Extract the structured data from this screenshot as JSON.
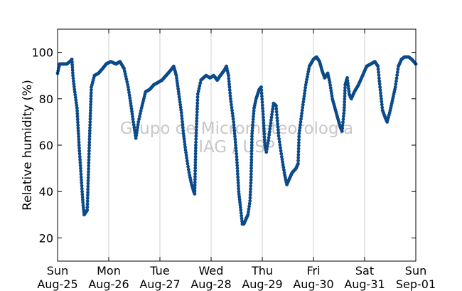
{
  "chart_data": {
    "type": "scatter",
    "title": "",
    "xlabel": "",
    "ylabel": "Relative humidity (%)",
    "ylim": [
      10,
      110
    ],
    "yticks": [
      20,
      40,
      60,
      80,
      100
    ],
    "xlim": [
      0,
      7
    ],
    "x_unit": "days from Sun Aug-25 00:00",
    "xticks": [
      {
        "x": 0,
        "day": "Sun",
        "date": "Aug-25"
      },
      {
        "x": 1,
        "day": "Mon",
        "date": "Aug-26"
      },
      {
        "x": 2,
        "day": "Tue",
        "date": "Aug-27"
      },
      {
        "x": 3,
        "day": "Wed",
        "date": "Aug-28"
      },
      {
        "x": 4,
        "day": "Thu",
        "date": "Aug-29"
      },
      {
        "x": 5,
        "day": "Fri",
        "date": "Aug-30"
      },
      {
        "x": 6,
        "day": "Sat",
        "date": "Aug-31"
      },
      {
        "x": 7,
        "day": "Sun",
        "date": "Sep-01"
      }
    ],
    "grid": "vertical",
    "marker_color": "#0b4a8a",
    "watermark": [
      "Grupo de Micrometeorologia",
      "IAG / USP"
    ],
    "series": [
      {
        "values": [
          [
            0.0,
            91
          ],
          [
            0.04,
            95
          ],
          [
            0.1,
            95
          ],
          [
            0.18,
            95
          ],
          [
            0.24,
            96
          ],
          [
            0.28,
            97
          ],
          [
            0.3,
            90
          ],
          [
            0.33,
            84
          ],
          [
            0.38,
            76
          ],
          [
            0.42,
            60
          ],
          [
            0.45,
            50
          ],
          [
            0.48,
            40
          ],
          [
            0.5,
            34
          ],
          [
            0.52,
            30
          ],
          [
            0.55,
            31
          ],
          [
            0.58,
            32
          ],
          [
            0.62,
            60
          ],
          [
            0.66,
            85
          ],
          [
            0.72,
            90
          ],
          [
            0.8,
            91
          ],
          [
            0.88,
            93
          ],
          [
            0.95,
            95
          ],
          [
            1.04,
            96
          ],
          [
            1.14,
            95
          ],
          [
            1.22,
            96
          ],
          [
            1.3,
            93
          ],
          [
            1.38,
            85
          ],
          [
            1.43,
            78
          ],
          [
            1.48,
            70
          ],
          [
            1.53,
            63
          ],
          [
            1.58,
            70
          ],
          [
            1.64,
            76
          ],
          [
            1.72,
            83
          ],
          [
            1.8,
            84
          ],
          [
            1.88,
            86
          ],
          [
            1.96,
            87
          ],
          [
            2.04,
            88
          ],
          [
            2.12,
            90
          ],
          [
            2.2,
            92
          ],
          [
            2.27,
            94
          ],
          [
            2.32,
            90
          ],
          [
            2.37,
            82
          ],
          [
            2.42,
            74
          ],
          [
            2.46,
            65
          ],
          [
            2.5,
            58
          ],
          [
            2.54,
            52
          ],
          [
            2.58,
            47
          ],
          [
            2.62,
            43
          ],
          [
            2.66,
            40
          ],
          [
            2.68,
            39
          ],
          [
            2.7,
            60
          ],
          [
            2.74,
            82
          ],
          [
            2.8,
            88
          ],
          [
            2.9,
            90
          ],
          [
            2.98,
            89
          ],
          [
            3.05,
            90
          ],
          [
            3.12,
            88
          ],
          [
            3.18,
            90
          ],
          [
            3.25,
            92
          ],
          [
            3.3,
            94
          ],
          [
            3.34,
            90
          ],
          [
            3.38,
            80
          ],
          [
            3.44,
            70
          ],
          [
            3.5,
            55
          ],
          [
            3.54,
            40
          ],
          [
            3.58,
            32
          ],
          [
            3.61,
            26
          ],
          [
            3.64,
            26
          ],
          [
            3.68,
            28
          ],
          [
            3.72,
            30
          ],
          [
            3.76,
            36
          ],
          [
            3.78,
            45
          ],
          [
            3.8,
            65
          ],
          [
            3.84,
            76
          ],
          [
            3.88,
            80
          ],
          [
            3.94,
            84
          ],
          [
            3.98,
            85
          ],
          [
            4.02,
            72
          ],
          [
            4.05,
            60
          ],
          [
            4.08,
            57
          ],
          [
            4.12,
            62
          ],
          [
            4.18,
            72
          ],
          [
            4.22,
            78
          ],
          [
            4.27,
            77
          ],
          [
            4.32,
            64
          ],
          [
            4.38,
            55
          ],
          [
            4.44,
            47
          ],
          [
            4.48,
            43
          ],
          [
            4.52,
            45
          ],
          [
            4.58,
            48
          ],
          [
            4.66,
            50
          ],
          [
            4.7,
            52
          ],
          [
            4.72,
            65
          ],
          [
            4.78,
            75
          ],
          [
            4.85,
            86
          ],
          [
            4.92,
            94
          ],
          [
            5.0,
            97
          ],
          [
            5.06,
            98
          ],
          [
            5.12,
            96
          ],
          [
            5.17,
            92
          ],
          [
            5.22,
            89
          ],
          [
            5.28,
            91
          ],
          [
            5.32,
            87
          ],
          [
            5.37,
            80
          ],
          [
            5.42,
            76
          ],
          [
            5.47,
            72
          ],
          [
            5.52,
            68
          ],
          [
            5.56,
            66
          ],
          [
            5.6,
            75
          ],
          [
            5.62,
            86
          ],
          [
            5.66,
            89
          ],
          [
            5.7,
            82
          ],
          [
            5.74,
            80
          ],
          [
            5.8,
            83
          ],
          [
            5.88,
            86
          ],
          [
            5.96,
            90
          ],
          [
            6.04,
            94
          ],
          [
            6.12,
            95
          ],
          [
            6.2,
            96
          ],
          [
            6.26,
            94
          ],
          [
            6.3,
            85
          ],
          [
            6.35,
            75
          ],
          [
            6.4,
            72
          ],
          [
            6.44,
            70
          ],
          [
            6.5,
            75
          ],
          [
            6.55,
            80
          ],
          [
            6.6,
            85
          ],
          [
            6.66,
            94
          ],
          [
            6.72,
            97
          ],
          [
            6.78,
            98
          ],
          [
            6.86,
            98
          ],
          [
            6.92,
            97
          ],
          [
            7.0,
            95
          ]
        ]
      }
    ]
  }
}
